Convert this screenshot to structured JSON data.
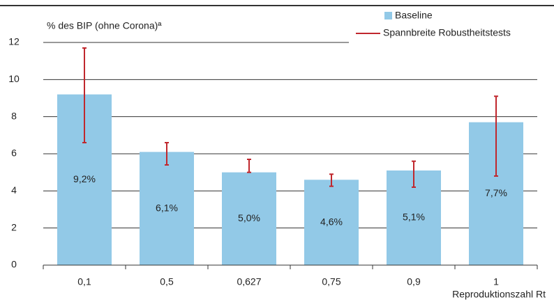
{
  "chart_data": {
    "type": "bar",
    "y_label": "% des BIP (ohne Corona)ª",
    "x_label": "Reproduktionszahl Rt",
    "categories": [
      "0,1",
      "0,5",
      "0,627",
      "0,75",
      "0,9",
      "1"
    ],
    "series": [
      {
        "name": "Baseline",
        "color": "#92c9e7",
        "values": [
          9.2,
          6.1,
          5.0,
          4.6,
          5.1,
          7.7
        ],
        "value_labels": [
          "9,2%",
          "6,1%",
          "5,0%",
          "4,6%",
          "5,1%",
          "7,7%"
        ]
      },
      {
        "name": "Spannbreite Robustheitstests",
        "color": "#c0272d",
        "low": [
          6.6,
          5.4,
          5.0,
          4.25,
          4.2,
          4.8
        ],
        "high": [
          11.7,
          6.6,
          5.7,
          4.9,
          5.6,
          9.1
        ]
      }
    ],
    "ylim": [
      0,
      12
    ],
    "yticks": [
      0,
      2,
      4,
      6,
      8,
      10,
      12
    ],
    "grid": true
  }
}
